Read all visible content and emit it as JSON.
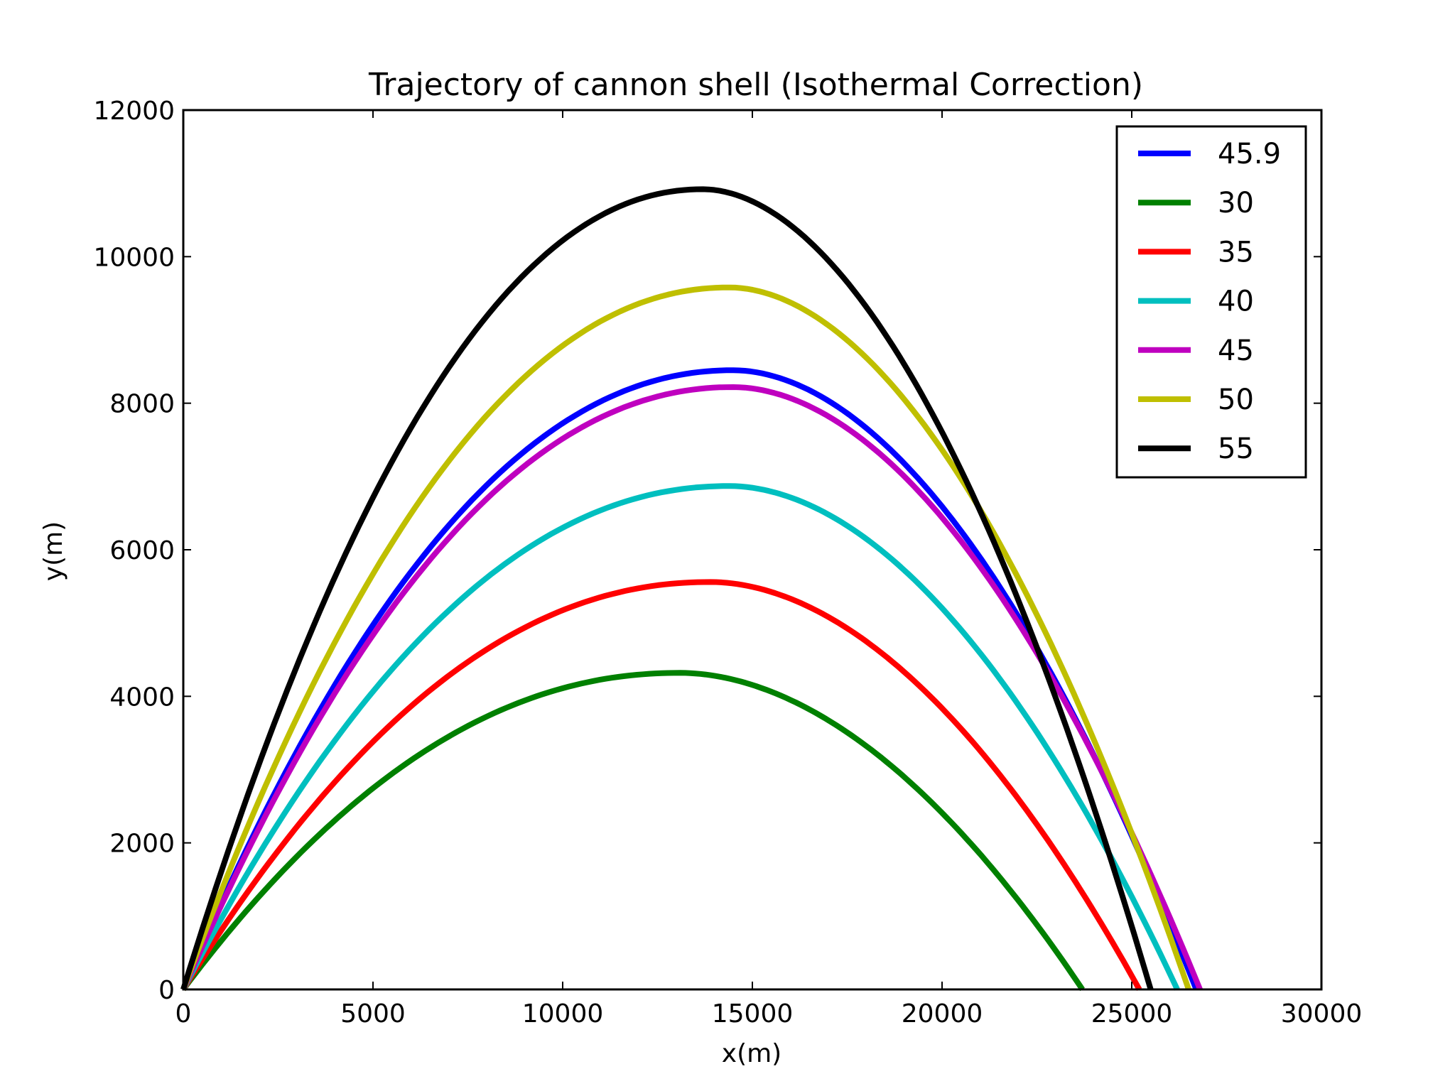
{
  "chart_data": {
    "type": "line",
    "title": "Trajectory of cannon shell (Isothermal Correction)",
    "xlabel": "x(m)",
    "ylabel": "y(m)",
    "xlim": [
      0,
      30000
    ],
    "ylim": [
      0,
      12000
    ],
    "xticks": [
      0,
      5000,
      10000,
      15000,
      20000,
      25000,
      30000
    ],
    "yticks": [
      0,
      2000,
      4000,
      6000,
      8000,
      10000,
      12000
    ],
    "xtick_labels": [
      "0",
      "5000",
      "10000",
      "15000",
      "20000",
      "25000",
      "30000"
    ],
    "ytick_labels": [
      "0",
      "2000",
      "4000",
      "6000",
      "8000",
      "10000",
      "12000"
    ],
    "grid": false,
    "legend_position": "top-right",
    "series": [
      {
        "name": "45.9",
        "color": "#0000ff",
        "x_peak": 14500,
        "y_peak": 8450,
        "x_land": 26700
      },
      {
        "name": "30",
        "color": "#008000",
        "x_peak": 13100,
        "y_peak": 4320,
        "x_land": 23700
      },
      {
        "name": "35",
        "color": "#ff0000",
        "x_peak": 13900,
        "y_peak": 5560,
        "x_land": 25200
      },
      {
        "name": "40",
        "color": "#00bfbf",
        "x_peak": 14400,
        "y_peak": 6870,
        "x_land": 26200
      },
      {
        "name": "45",
        "color": "#bf00bf",
        "x_peak": 14500,
        "y_peak": 8220,
        "x_land": 26800
      },
      {
        "name": "50",
        "color": "#bfbf00",
        "x_peak": 14400,
        "y_peak": 9580,
        "x_land": 26500
      },
      {
        "name": "55",
        "color": "#000000",
        "x_peak": 13700,
        "y_peak": 10920,
        "x_land": 25500
      }
    ]
  }
}
